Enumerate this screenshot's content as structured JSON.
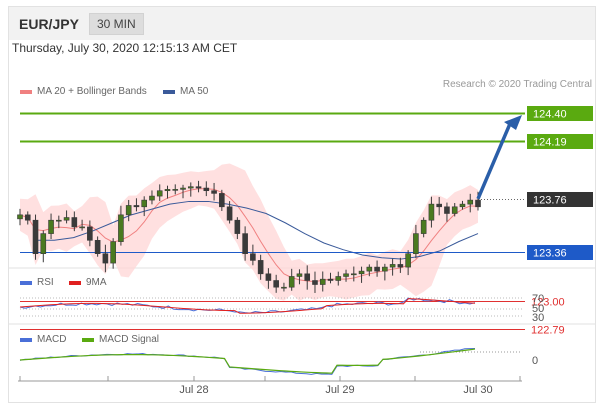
{
  "header": {
    "pair": "EUR/JPY",
    "timeframe": "30 MIN"
  },
  "datetime": "Thursday, July 30, 2020 12:15:13 AM CET",
  "credit": "Research © 2020 Trading Central",
  "colors": {
    "ma20": "#f08080",
    "ma50": "#3a5a9a",
    "green": "#5aaa10",
    "blue": "#1e5ac8",
    "red": "#e03030",
    "dark": "#333333",
    "arrow": "#2a5ea8"
  },
  "chart_data": [
    {
      "type": "line",
      "panel": "price",
      "x_ticks": [
        "Jul 28",
        "Jul 29",
        "Jul 30"
      ],
      "legend": [
        {
          "label": "MA 20 + Bollinger Bands",
          "color": "#f08080"
        },
        {
          "label": "MA 50",
          "color": "#3a5a9a"
        }
      ],
      "levels": [
        {
          "value": 124.4,
          "label": "124.40",
          "style": "green-box"
        },
        {
          "value": 124.19,
          "label": "124.19",
          "style": "green-box"
        },
        {
          "value": 123.76,
          "label": "123.76",
          "style": "dark-box"
        },
        {
          "value": 123.36,
          "label": "123.36",
          "style": "blue-box"
        },
        {
          "value": 123.0,
          "label": "123.00",
          "style": "red-text"
        },
        {
          "value": 122.79,
          "label": "122.79",
          "style": "red-text"
        }
      ],
      "series": [
        {
          "name": "Close",
          "values": [
            123.64,
            123.6,
            123.35,
            123.5,
            123.6,
            123.6,
            123.62,
            123.55,
            123.55,
            123.45,
            123.35,
            123.28,
            123.44,
            123.64,
            123.71,
            123.7,
            123.75,
            123.78,
            123.82,
            123.83,
            123.83,
            123.84,
            123.85,
            123.84,
            123.82,
            123.8,
            123.7,
            123.6,
            123.5,
            123.35,
            123.3,
            123.2,
            123.15,
            123.1,
            123.1,
            123.18,
            123.2,
            123.15,
            123.12,
            123.16,
            123.15,
            123.18,
            123.2,
            123.2,
            123.22,
            123.25,
            123.22,
            123.25,
            123.27,
            123.25,
            123.35,
            123.5,
            123.6,
            123.72,
            123.7,
            123.65,
            123.7,
            123.72,
            123.75,
            123.7
          ]
        },
        {
          "name": "MA 50",
          "values": [
            123.45,
            123.45,
            123.47,
            123.52,
            123.58,
            123.64,
            123.68,
            123.72,
            123.74,
            123.74,
            123.72,
            123.69,
            123.65,
            123.58,
            123.5,
            123.43,
            123.38,
            123.34,
            123.32,
            123.31,
            123.33,
            123.37,
            123.44,
            123.5
          ]
        }
      ],
      "ylim": [
        122.6,
        124.5
      ]
    },
    {
      "type": "line",
      "panel": "rsi",
      "legend": [
        {
          "label": "RSI",
          "color": "#4a6fd8"
        },
        {
          "label": "9MA",
          "color": "#e02020"
        }
      ],
      "y_ticks": [
        "70",
        "50",
        "30"
      ],
      "ylim": [
        20,
        80
      ]
    },
    {
      "type": "line",
      "panel": "macd",
      "legend": [
        {
          "label": "MACD",
          "color": "#4a6fd8"
        },
        {
          "label": "MACD Signal",
          "color": "#5aaa10"
        }
      ],
      "y_ticks": [
        "0"
      ]
    }
  ]
}
